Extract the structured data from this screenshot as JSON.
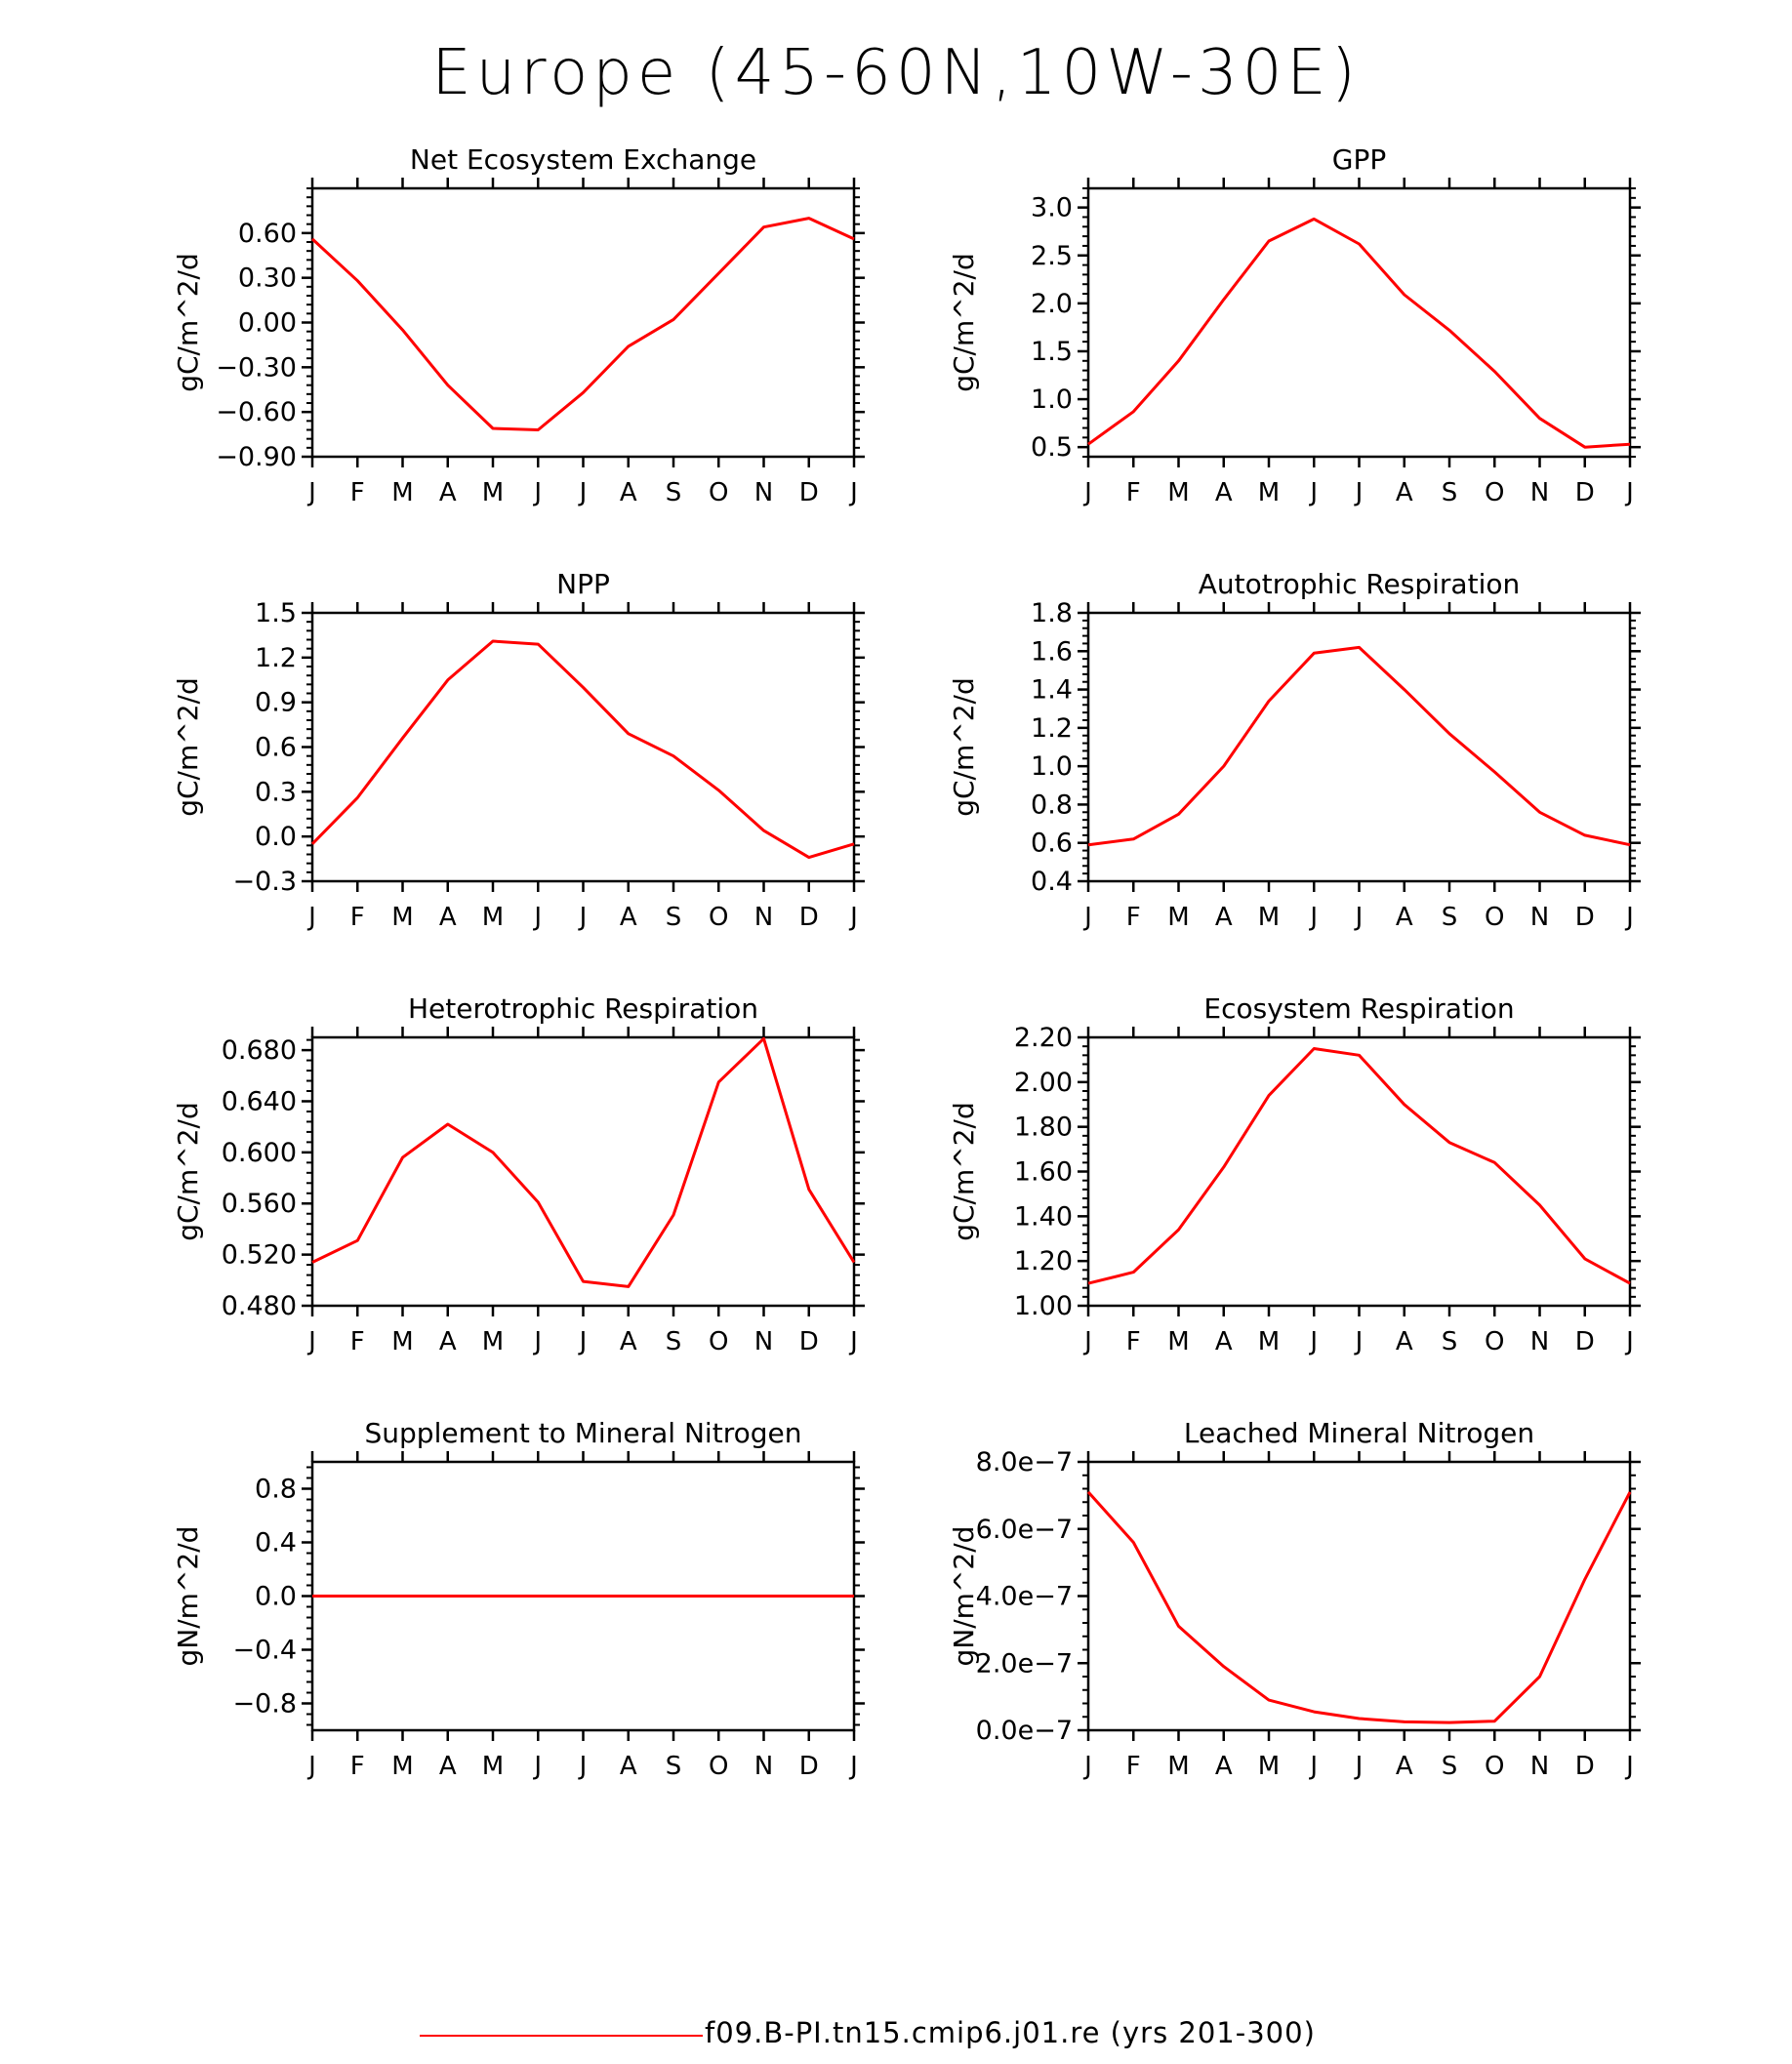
{
  "figure": {
    "title": "Europe (45-60N,10W-30E)",
    "legend": {
      "label": "f09.B-PI.tn15.cmip6.j01.re (yrs 201-300)",
      "color": "#ff0000"
    }
  },
  "chart_data": [
    {
      "type": "line",
      "title": "Net Ecosystem Exchange",
      "ylabel": "gC/m^2/d",
      "categories": [
        "J",
        "F",
        "M",
        "A",
        "M",
        "J",
        "J",
        "A",
        "S",
        "O",
        "N",
        "D",
        "J"
      ],
      "ylim": [
        -0.9,
        0.9
      ],
      "yticks": [
        -0.9,
        -0.6,
        -0.3,
        0.0,
        0.3,
        0.6
      ],
      "ytick_labels": [
        "-0.90",
        "-0.60",
        "-0.30",
        "0.00",
        "0.30",
        "0.60"
      ],
      "series": [
        {
          "values": [
            0.56,
            0.28,
            -0.05,
            -0.42,
            -0.71,
            -0.72,
            -0.47,
            -0.16,
            0.02,
            0.33,
            0.64,
            0.7,
            0.56
          ]
        }
      ],
      "line_color": "#ff0000"
    },
    {
      "type": "line",
      "title": "GPP",
      "ylabel": "gC/m^2/d",
      "categories": [
        "J",
        "F",
        "M",
        "A",
        "M",
        "J",
        "J",
        "A",
        "S",
        "O",
        "N",
        "D",
        "J"
      ],
      "ylim": [
        0.4,
        3.2
      ],
      "yticks": [
        0.5,
        1.0,
        1.5,
        2.0,
        2.5,
        3.0
      ],
      "ytick_labels": [
        "0.5",
        "1.0",
        "1.5",
        "2.0",
        "2.5",
        "3.0"
      ],
      "series": [
        {
          "values": [
            0.53,
            0.87,
            1.4,
            2.04,
            2.65,
            2.88,
            2.62,
            2.09,
            1.72,
            1.29,
            0.8,
            0.5,
            0.53
          ]
        }
      ],
      "line_color": "#ff0000"
    },
    {
      "type": "line",
      "title": "NPP",
      "ylabel": "gC/m^2/d",
      "categories": [
        "J",
        "F",
        "M",
        "A",
        "M",
        "J",
        "J",
        "A",
        "S",
        "O",
        "N",
        "D",
        "J"
      ],
      "ylim": [
        -0.3,
        1.5
      ],
      "yticks": [
        -0.3,
        0.0,
        0.3,
        0.6,
        0.9,
        1.2,
        1.5
      ],
      "ytick_labels": [
        "-0.3",
        "0.0",
        "0.3",
        "0.6",
        "0.9",
        "1.2",
        "1.5"
      ],
      "series": [
        {
          "values": [
            -0.05,
            0.26,
            0.66,
            1.05,
            1.31,
            1.29,
            1.0,
            0.69,
            0.54,
            0.31,
            0.04,
            -0.14,
            -0.05
          ]
        }
      ],
      "line_color": "#ff0000"
    },
    {
      "type": "line",
      "title": "Autotrophic Respiration",
      "ylabel": "gC/m^2/d",
      "categories": [
        "J",
        "F",
        "M",
        "A",
        "M",
        "J",
        "J",
        "A",
        "S",
        "O",
        "N",
        "D",
        "J"
      ],
      "ylim": [
        0.4,
        1.8
      ],
      "yticks": [
        0.4,
        0.6,
        0.8,
        1.0,
        1.2,
        1.4,
        1.6,
        1.8
      ],
      "ytick_labels": [
        "0.4",
        "0.6",
        "0.8",
        "1.0",
        "1.2",
        "1.4",
        "1.6",
        "1.8"
      ],
      "series": [
        {
          "values": [
            0.59,
            0.62,
            0.75,
            1.0,
            1.34,
            1.59,
            1.62,
            1.4,
            1.17,
            0.97,
            0.76,
            0.64,
            0.59
          ]
        }
      ],
      "line_color": "#ff0000"
    },
    {
      "type": "line",
      "title": "Heterotrophic Respiration",
      "ylabel": "gC/m^2/d",
      "categories": [
        "J",
        "F",
        "M",
        "A",
        "M",
        "J",
        "J",
        "A",
        "S",
        "O",
        "N",
        "D",
        "J"
      ],
      "ylim": [
        0.48,
        0.69
      ],
      "yticks": [
        0.48,
        0.52,
        0.56,
        0.6,
        0.64,
        0.68
      ],
      "ytick_labels": [
        "0.480",
        "0.520",
        "0.560",
        "0.600",
        "0.640",
        "0.680"
      ],
      "series": [
        {
          "values": [
            0.514,
            0.531,
            0.596,
            0.622,
            0.6,
            0.561,
            0.499,
            0.495,
            0.551,
            0.655,
            0.689,
            0.571,
            0.514
          ]
        }
      ],
      "line_color": "#ff0000"
    },
    {
      "type": "line",
      "title": "Ecosystem Respiration",
      "ylabel": "gC/m^2/d",
      "categories": [
        "J",
        "F",
        "M",
        "A",
        "M",
        "J",
        "J",
        "A",
        "S",
        "O",
        "N",
        "D",
        "J"
      ],
      "ylim": [
        1.0,
        2.2
      ],
      "yticks": [
        1.0,
        1.2,
        1.4,
        1.6,
        1.8,
        2.0,
        2.2
      ],
      "ytick_labels": [
        "1.00",
        "1.20",
        "1.40",
        "1.60",
        "1.80",
        "2.00",
        "2.20"
      ],
      "series": [
        {
          "values": [
            1.1,
            1.15,
            1.34,
            1.62,
            1.94,
            2.15,
            2.12,
            1.9,
            1.73,
            1.64,
            1.45,
            1.21,
            1.1
          ]
        }
      ],
      "line_color": "#ff0000"
    },
    {
      "type": "line",
      "title": "Supplement to Mineral Nitrogen",
      "ylabel": "gN/m^2/d",
      "categories": [
        "J",
        "F",
        "M",
        "A",
        "M",
        "J",
        "J",
        "A",
        "S",
        "O",
        "N",
        "D",
        "J"
      ],
      "ylim": [
        -1.0,
        1.0
      ],
      "yticks": [
        -0.8,
        -0.4,
        0.0,
        0.4,
        0.8
      ],
      "ytick_labels": [
        "-0.8",
        "-0.4",
        "0.0",
        "0.4",
        "0.8"
      ],
      "series": [
        {
          "values": [
            0,
            0,
            0,
            0,
            0,
            0,
            0,
            0,
            0,
            0,
            0,
            0,
            0
          ]
        }
      ],
      "line_color": "#ff0000"
    },
    {
      "type": "line",
      "title": "Leached Mineral Nitrogen",
      "ylabel": "gN/m^2/d",
      "categories": [
        "J",
        "F",
        "M",
        "A",
        "M",
        "J",
        "J",
        "A",
        "S",
        "O",
        "N",
        "D",
        "J"
      ],
      "ylim": [
        0.0,
        8e-07
      ],
      "yticks": [
        0.0,
        2e-07,
        4e-07,
        6e-07,
        8e-07
      ],
      "ytick_labels": [
        "0.0e-7",
        "2.0e-7",
        "4.0e-7",
        "6.0e-7",
        "8.0e-7"
      ],
      "series": [
        {
          "values": [
            7.1e-07,
            5.6e-07,
            3.1e-07,
            1.9e-07,
            9e-08,
            5.5e-08,
            3.5e-08,
            2.5e-08,
            2.3e-08,
            2.7e-08,
            1.6e-07,
            4.5e-07,
            7.1e-07
          ]
        }
      ],
      "line_color": "#ff0000"
    }
  ]
}
